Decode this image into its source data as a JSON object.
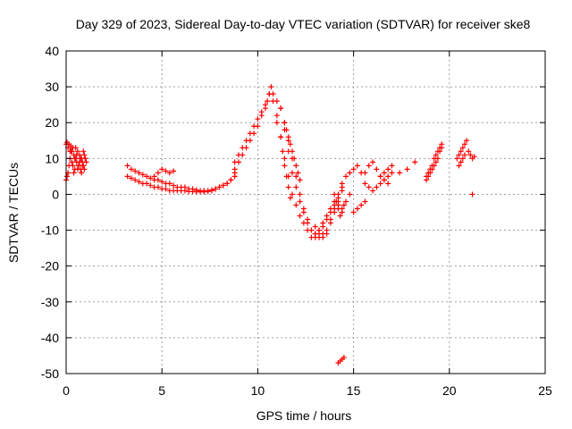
{
  "chart_data": {
    "type": "scatter",
    "title": "Day 329 of 2023, Sidereal Day-to-day VTEC variation (SDTVAR) for receiver ske8",
    "xlabel": "GPS time / hours",
    "ylabel": "SDTVAR / TECUs",
    "xlim": [
      0,
      25
    ],
    "ylim": [
      -50,
      40
    ],
    "xticks": [
      0,
      5,
      10,
      15,
      20,
      25
    ],
    "yticks": [
      -50,
      -40,
      -30,
      -20,
      -10,
      0,
      10,
      20,
      30,
      40
    ],
    "grid": true,
    "marker": "plus",
    "series": [
      {
        "name": "SDTVAR",
        "color": "#ff0000",
        "x": [
          0.0,
          0.05,
          0.1,
          0.15,
          0.2,
          0.25,
          0.3,
          0.35,
          0.4,
          0.45,
          0.5,
          0.55,
          0.6,
          0.65,
          0.7,
          0.75,
          0.8,
          0.85,
          0.9,
          0.95,
          1.0,
          1.05,
          0.0,
          0.05,
          0.1,
          0.15,
          0.2,
          0.25,
          0.3,
          0.35,
          0.4,
          0.45,
          0.5,
          0.55,
          0.6,
          0.65,
          0.7,
          0.75,
          0.8,
          0.85,
          0.9,
          0.95,
          1.0,
          3.2,
          3.4,
          3.6,
          3.8,
          4.0,
          4.2,
          4.4,
          4.6,
          4.8,
          5.0,
          5.2,
          5.4,
          5.6,
          5.8,
          6.0,
          6.2,
          6.4,
          6.6,
          6.8,
          7.0,
          7.2,
          7.4,
          7.6,
          7.8,
          8.0,
          8.2,
          8.4,
          8.6,
          8.8,
          3.2,
          3.4,
          3.6,
          3.8,
          4.0,
          4.2,
          4.4,
          4.6,
          4.8,
          5.0,
          5.2,
          5.4,
          5.6,
          5.8,
          6.0,
          6.2,
          6.4,
          6.6,
          6.8,
          7.0,
          7.2,
          7.4,
          7.6,
          7.8,
          8.0,
          8.2,
          8.4,
          8.6,
          8.8,
          4.6,
          4.8,
          5.0,
          5.2,
          5.4,
          5.6,
          8.8,
          9.0,
          9.2,
          9.4,
          9.6,
          9.8,
          10.0,
          10.2,
          10.4,
          10.5,
          10.6,
          10.7,
          8.8,
          9.0,
          9.2,
          9.4,
          9.6,
          9.8,
          10.0,
          10.2,
          10.4,
          10.6,
          10.8,
          11.0,
          11.2,
          11.4,
          11.6,
          11.8,
          12.0,
          12.2,
          12.4,
          12.6,
          12.8,
          13.0,
          13.2,
          13.4,
          13.6,
          13.8,
          14.0,
          14.2,
          14.4,
          10.8,
          11.0,
          11.2,
          11.4,
          11.6,
          11.8,
          12.0,
          12.2,
          12.4,
          12.6,
          12.8,
          13.0,
          13.2,
          13.4,
          13.6,
          13.8,
          14.0,
          14.2,
          14.4,
          11.2,
          11.4,
          11.6,
          11.8,
          12.0,
          12.2,
          12.4,
          12.6,
          12.8,
          13.0,
          13.2,
          13.4,
          13.6,
          13.8,
          14.0,
          14.2,
          11.0,
          11.2,
          11.3,
          11.4,
          11.5,
          11.6,
          11.7,
          11.4,
          11.5,
          11.6,
          11.7,
          11.8,
          11.9,
          12.0,
          12.1,
          12.2,
          13.0,
          13.2,
          13.4,
          13.6,
          13.8,
          14.0,
          14.2,
          14.4,
          14.6,
          14.8,
          14.0,
          14.1,
          14.2,
          14.3,
          14.4,
          14.5,
          14.4,
          14.6,
          14.8,
          15.0,
          15.2,
          15.4,
          15.0,
          15.2,
          15.4,
          15.6,
          15.6,
          15.8,
          16.0,
          16.2,
          16.4,
          16.6,
          16.8,
          17.0,
          15.6,
          15.8,
          16.0,
          16.2,
          16.4,
          16.6,
          16.8,
          16.4,
          16.6,
          16.8,
          17.0,
          17.4,
          17.8,
          18.2,
          18.8,
          18.9,
          19.0,
          19.1,
          19.2,
          19.3,
          19.4,
          19.5,
          19.6,
          18.8,
          18.9,
          19.0,
          19.1,
          19.2,
          19.3,
          19.4,
          19.5,
          19.6,
          20.4,
          20.5,
          20.6,
          20.7,
          20.8,
          20.9,
          21.0,
          21.1,
          21.2,
          21.3,
          20.5,
          20.6,
          20.7,
          20.8,
          21.2,
          14.2,
          14.3,
          14.4,
          14.5
        ],
        "y": [
          14,
          14.5,
          13,
          14,
          12,
          13.5,
          12,
          13,
          11,
          10,
          13,
          9,
          12,
          8,
          11,
          7,
          10,
          9,
          8,
          7,
          10,
          9,
          4,
          5,
          6,
          8,
          10,
          12,
          9,
          8,
          6,
          7,
          10,
          11,
          7,
          8,
          9,
          10,
          6,
          8,
          12,
          11,
          10,
          8,
          7,
          6.5,
          6,
          5.5,
          5,
          4.5,
          4,
          4,
          3.5,
          3,
          3,
          2.5,
          2,
          2,
          2,
          1.5,
          1.5,
          1.2,
          1,
          1,
          1,
          1.2,
          1.5,
          2,
          2.5,
          3,
          4,
          6,
          5,
          4.5,
          4,
          3.5,
          3,
          3,
          2.5,
          2,
          2,
          1.5,
          1.5,
          1,
          1,
          1,
          1,
          1,
          0.8,
          0.8,
          0.7,
          0.7,
          0.7,
          0.8,
          1,
          1.5,
          2,
          2.5,
          3,
          4,
          5,
          5,
          6,
          7,
          6.5,
          6,
          6.5,
          7,
          9,
          11,
          13,
          15,
          17,
          19,
          22,
          24,
          26,
          28,
          30,
          9,
          11,
          13,
          15,
          17,
          19,
          21,
          23,
          25,
          28,
          28,
          26,
          24,
          20,
          15,
          10,
          5,
          0,
          -4,
          -7,
          -10,
          -11,
          -10,
          -8,
          -6,
          -4,
          -2,
          0,
          2,
          26,
          22,
          16,
          10,
          5,
          0,
          -3,
          -6,
          -8,
          -10,
          -12,
          -12,
          -11,
          -9,
          -7,
          -5,
          -3,
          -1,
          1,
          24,
          18,
          12,
          6,
          2,
          -2,
          -5,
          -8,
          -10,
          -11,
          -12,
          -11,
          -10,
          -7,
          -4,
          -2,
          20,
          16,
          12,
          8,
          5,
          2,
          -1,
          20,
          18,
          16,
          14,
          12,
          10,
          8,
          6,
          4,
          -9,
          -10,
          -12,
          -11,
          -8,
          -5,
          -3,
          -4,
          -2,
          0,
          0,
          -2,
          -4,
          -6,
          -5,
          -3,
          3,
          5,
          6,
          7,
          8,
          6,
          -5,
          -4,
          -3,
          -2,
          6,
          8,
          9,
          7,
          5,
          4,
          5,
          6,
          3,
          2,
          1,
          2,
          3,
          4,
          3,
          5,
          6,
          7,
          8,
          6,
          7,
          9,
          5,
          6,
          7,
          8,
          10,
          11,
          12,
          13,
          14,
          4,
          5,
          6,
          7,
          8,
          9,
          10,
          12,
          13,
          10,
          11,
          12,
          13,
          14,
          15,
          12,
          11,
          10,
          10.5,
          8,
          9,
          10,
          11,
          0,
          -47,
          -46.5,
          -46,
          -45.5
        ]
      }
    ]
  }
}
